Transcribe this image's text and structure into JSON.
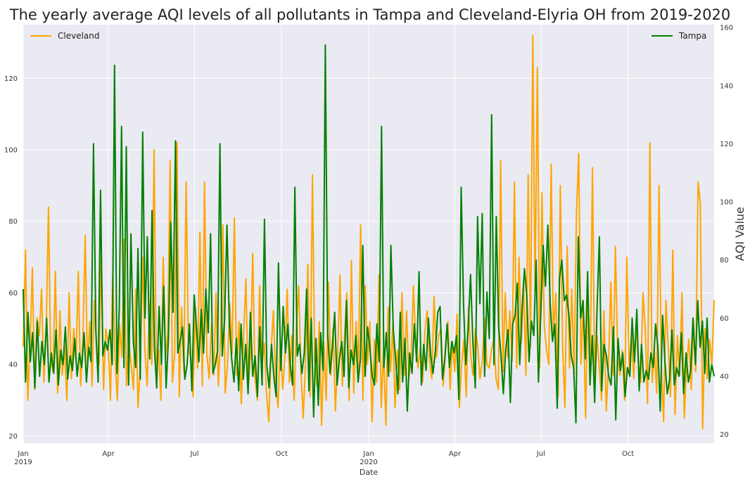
{
  "chart_data": {
    "type": "line",
    "title": "The yearly average AQI levels of all pollutants in Tampa and Cleveland-Elyria OH from 2019-2020",
    "xlabel": "Date",
    "ylabel_left": "",
    "ylabel_right": "AQI Value",
    "x_range": [
      "2019-01-01",
      "2020-12-31"
    ],
    "ylim_left": [
      18,
      135
    ],
    "ylim_right": [
      17,
      161
    ],
    "yticks_left": [
      "20",
      "40",
      "60",
      "80",
      "100",
      "120"
    ],
    "yticks_right": [
      "20",
      "40",
      "60",
      "80",
      "100",
      "120",
      "140",
      "160"
    ],
    "xticks": [
      {
        "date": "2019-01-01",
        "label": "Jan",
        "sublabel": "2019"
      },
      {
        "date": "2019-04-01",
        "label": "Apr",
        "sublabel": ""
      },
      {
        "date": "2019-07-01",
        "label": "Jul",
        "sublabel": ""
      },
      {
        "date": "2019-10-01",
        "label": "Oct",
        "sublabel": ""
      },
      {
        "date": "2020-01-01",
        "label": "Jan",
        "sublabel": "2020"
      },
      {
        "date": "2020-04-01",
        "label": "Apr",
        "sublabel": ""
      },
      {
        "date": "2020-07-01",
        "label": "Jul",
        "sublabel": ""
      },
      {
        "date": "2020-10-01",
        "label": "Oct",
        "sublabel": ""
      }
    ],
    "grid": true,
    "legend": [
      {
        "name": "Cleveland",
        "position": "top-left",
        "axis": "left"
      },
      {
        "name": "Tampa",
        "position": "top-right",
        "axis": "right"
      }
    ],
    "series": [
      {
        "name": "Cleveland",
        "axis": "left",
        "color": "#ffa500",
        "x_start": "2019-01-01",
        "x_end": "2020-12-31",
        "values": [
          45,
          72,
          30,
          46,
          67,
          33,
          53,
          48,
          61,
          35,
          49,
          84,
          41,
          38,
          66,
          32,
          55,
          37,
          45,
          30,
          60,
          36,
          50,
          41,
          66,
          34,
          47,
          76,
          39,
          52,
          34,
          58,
          44,
          40,
          70,
          33,
          50,
          46,
          30,
          65,
          42,
          30,
          51,
          42,
          75,
          34,
          47,
          40,
          33,
          61,
          28,
          39,
          70,
          44,
          34,
          57,
          40,
          100,
          38,
          44,
          30,
          70,
          42,
          49,
          97,
          35,
          43,
          102,
          31,
          56,
          38,
          91,
          44,
          42,
          31,
          56,
          39,
          77,
          34,
          91,
          43,
          36,
          51,
          37,
          60,
          34,
          48,
          79,
          32,
          40,
          57,
          43,
          81,
          37,
          52,
          29,
          48,
          64,
          33,
          42,
          71,
          36,
          30,
          62,
          40,
          46,
          32,
          24,
          44,
          55,
          35,
          28,
          47,
          33,
          42,
          61,
          35,
          48,
          30,
          50,
          62,
          38,
          25,
          41,
          68,
          31,
          93,
          41,
          34,
          52,
          23,
          46,
          30,
          63,
          37,
          50,
          27,
          43,
          65,
          34,
          48,
          60,
          30,
          69,
          32,
          52,
          38,
          79,
          30,
          62,
          40,
          52,
          24,
          47,
          35,
          65,
          28,
          44,
          23,
          56,
          38,
          51,
          28,
          44,
          33,
          60,
          37,
          55,
          36,
          42,
          62,
          46,
          39,
          45,
          35,
          49,
          55,
          41,
          36,
          59,
          42,
          48,
          50,
          34,
          44,
          52,
          33,
          46,
          38,
          54,
          28,
          40,
          47,
          31,
          56,
          42,
          37,
          50,
          45,
          36,
          41,
          53,
          40,
          39,
          44,
          47,
          36,
          33,
          97,
          38,
          60,
          42,
          55,
          41,
          91,
          39,
          70,
          46,
          63,
          37,
          93,
          45,
          132,
          60,
          123,
          39,
          88,
          51,
          44,
          40,
          96,
          48,
          60,
          31,
          90,
          45,
          28,
          73,
          39,
          61,
          37,
          82,
          99,
          40,
          58,
          25,
          60,
          38,
          95,
          33,
          48,
          39,
          30,
          55,
          27,
          40,
          63,
          37,
          73,
          42,
          37,
          44,
          30,
          70,
          38,
          48,
          36,
          52,
          40,
          35,
          60,
          50,
          29,
          102,
          35,
          44,
          32,
          90,
          40,
          24,
          58,
          45,
          31,
          72,
          26,
          48,
          37,
          60,
          25,
          40,
          47,
          33,
          52,
          38,
          91,
          85,
          22,
          50,
          36,
          47,
          40,
          58
        ]
      },
      {
        "name": "Tampa",
        "axis": "right",
        "color": "#008000",
        "x_start": "2019-01-01",
        "x_end": "2020-12-31",
        "values": [
          70,
          38,
          62,
          45,
          55,
          36,
          59,
          40,
          52,
          44,
          60,
          38,
          48,
          41,
          56,
          37,
          49,
          44,
          57,
          39,
          47,
          42,
          53,
          40,
          48,
          43,
          55,
          38,
          50,
          45,
          120,
          56,
          38,
          104,
          47,
          52,
          49,
          56,
          44,
          147,
          41,
          63,
          126,
          43,
          119,
          37,
          89,
          52,
          43,
          84,
          39,
          124,
          60,
          88,
          46,
          97,
          50,
          36,
          64,
          44,
          71,
          36,
          53,
          93,
          62,
          121,
          48,
          52,
          57,
          39,
          44,
          58,
          35,
          68,
          57,
          45,
          63,
          48,
          70,
          55,
          89,
          41,
          44,
          49,
          120,
          47,
          60,
          92,
          59,
          46,
          38,
          53,
          35,
          58,
          39,
          51,
          34,
          62,
          40,
          47,
          33,
          57,
          37,
          94,
          44,
          36,
          51,
          40,
          33,
          79,
          42,
          64,
          48,
          58,
          44,
          37,
          105,
          47,
          51,
          41,
          48,
          70,
          35,
          60,
          26,
          53,
          30,
          55,
          42,
          154,
          55,
          41,
          50,
          62,
          37,
          46,
          52,
          40,
          66,
          36,
          49,
          44,
          54,
          38,
          46,
          85,
          40,
          57,
          50,
          40,
          37,
          58,
          45,
          126,
          43,
          55,
          40,
          85,
          56,
          46,
          34,
          62,
          38,
          53,
          28,
          48,
          41,
          58,
          45,
          76,
          37,
          51,
          42,
          60,
          47,
          41,
          49,
          62,
          64,
          39,
          46,
          58,
          43,
          52,
          48,
          54,
          32,
          105,
          65,
          44,
          57,
          75,
          52,
          36,
          95,
          65,
          96,
          40,
          69,
          53,
          130,
          44,
          95,
          57,
          47,
          34,
          49,
          56,
          31,
          58,
          61,
          72,
          44,
          63,
          77,
          68,
          45,
          59,
          54,
          80,
          38,
          62,
          85,
          71,
          92,
          65,
          52,
          58,
          29,
          74,
          80,
          66,
          68,
          61,
          47,
          43,
          24,
          88,
          60,
          66,
          46,
          76,
          37,
          54,
          31,
          63,
          88,
          35,
          51,
          47,
          40,
          37,
          57,
          25,
          53,
          42,
          48,
          33,
          43,
          40,
          60,
          45,
          63,
          35,
          51,
          38,
          42,
          39,
          48,
          43,
          58,
          50,
          28,
          61,
          45,
          34,
          39,
          56,
          37,
          43,
          40,
          55,
          34,
          48,
          38,
          42,
          60,
          44,
          66,
          50,
          59,
          41,
          60,
          38,
          44,
          40
        ]
      }
    ]
  }
}
